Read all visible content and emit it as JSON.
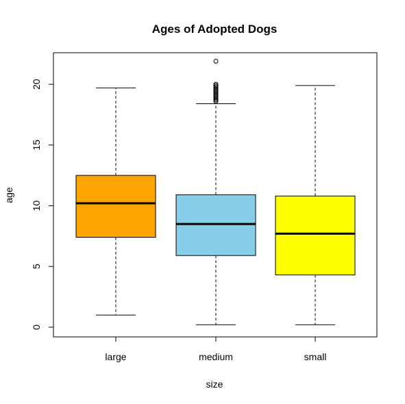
{
  "chart_data": {
    "type": "boxplot",
    "title": "Ages of Adopted Dogs",
    "xlabel": "size",
    "ylabel": "age",
    "ylim": [
      -0.8,
      22.6
    ],
    "yticks": [
      0,
      5,
      10,
      15,
      20
    ],
    "grid": false,
    "legend": "none",
    "categories": [
      "large",
      "medium",
      "small"
    ],
    "boxes": [
      {
        "category": "large",
        "min": 1.0,
        "q1": 7.4,
        "median": 10.2,
        "q3": 12.5,
        "max": 19.7,
        "fill": "#FFA500",
        "outliers": []
      },
      {
        "category": "medium",
        "min": 0.2,
        "q1": 5.9,
        "median": 8.5,
        "q3": 10.9,
        "max": 18.4,
        "fill": "#87CEEB",
        "outliers": [
          18.6,
          18.7,
          18.8,
          18.9,
          19.0,
          19.1,
          19.2,
          19.3,
          19.4,
          19.5,
          19.6,
          19.7,
          19.8,
          19.9,
          20.0,
          21.9
        ]
      },
      {
        "category": "small",
        "min": 0.2,
        "q1": 4.3,
        "median": 7.7,
        "q3": 10.8,
        "max": 19.9,
        "fill": "#FFFF00",
        "outliers": []
      }
    ]
  }
}
